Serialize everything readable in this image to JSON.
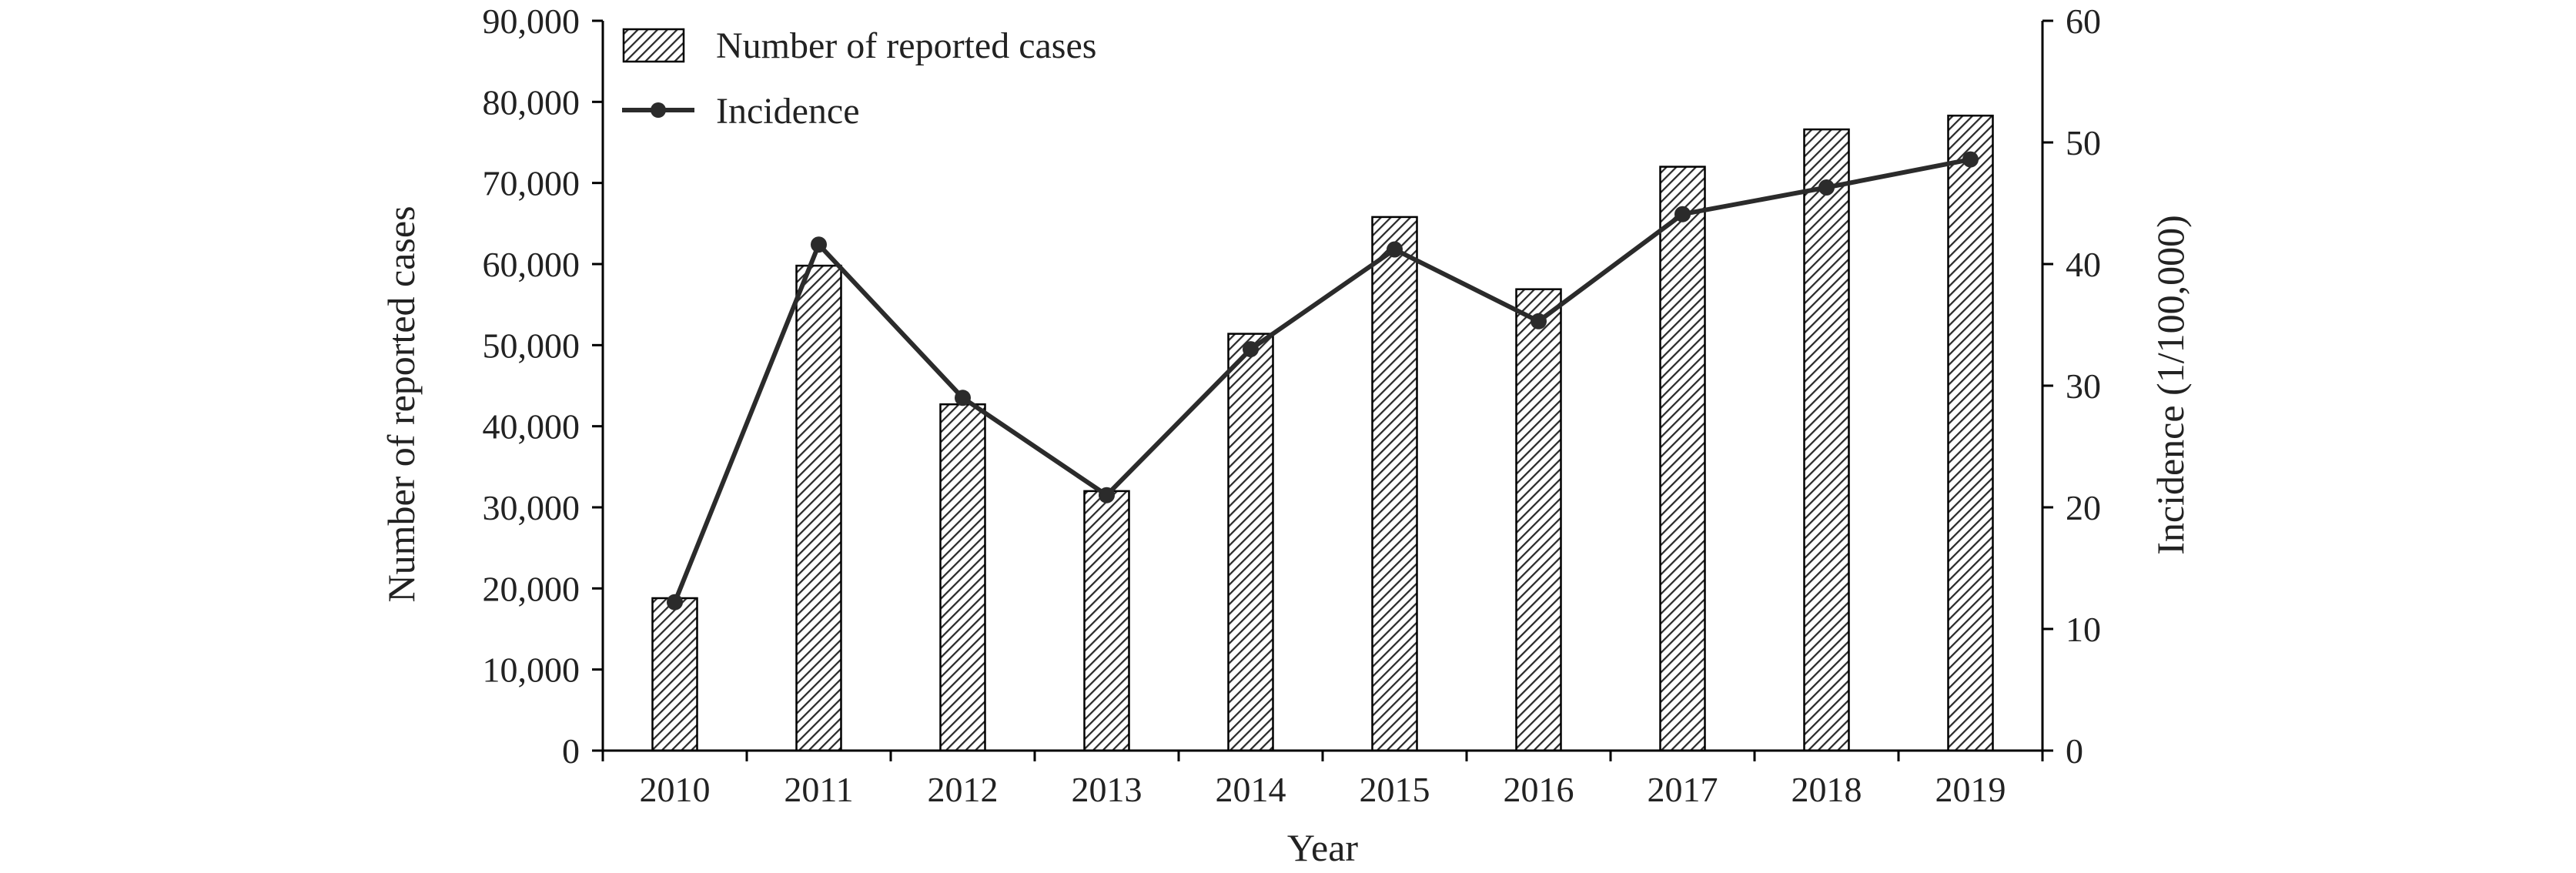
{
  "chart_data": {
    "type": "bar",
    "categories": [
      "2010",
      "2011",
      "2012",
      "2013",
      "2014",
      "2015",
      "2016",
      "2017",
      "2018",
      "2019"
    ],
    "series": [
      {
        "name": "Number of reported cases",
        "type": "bar",
        "axis": "left",
        "values": [
          18800,
          59800,
          42700,
          32000,
          51400,
          65800,
          56900,
          72000,
          76600,
          78300
        ]
      },
      {
        "name": "Incidence",
        "type": "line",
        "axis": "right",
        "values": [
          12.2,
          41.6,
          29.0,
          21.0,
          33.0,
          41.2,
          35.3,
          44.1,
          46.3,
          48.6
        ]
      }
    ],
    "xlabel": "Year",
    "ylabel": "Number of reported cases",
    "y2label": "Incidence (1/100,000)",
    "ylim": [
      0,
      90000
    ],
    "y2lim": [
      0,
      60
    ],
    "yticks": [
      "0",
      "10,000",
      "20,000",
      "30,000",
      "40,000",
      "50,000",
      "60,000",
      "70,000",
      "80,000",
      "90,000"
    ],
    "y2ticks": [
      "0",
      "10",
      "20",
      "30",
      "40",
      "50",
      "60"
    ],
    "legend": "top-left",
    "grid": false,
    "bar_fill": "diagonal-hatch",
    "line_color": "#2b2b2b",
    "axis_color": "#000000"
  }
}
